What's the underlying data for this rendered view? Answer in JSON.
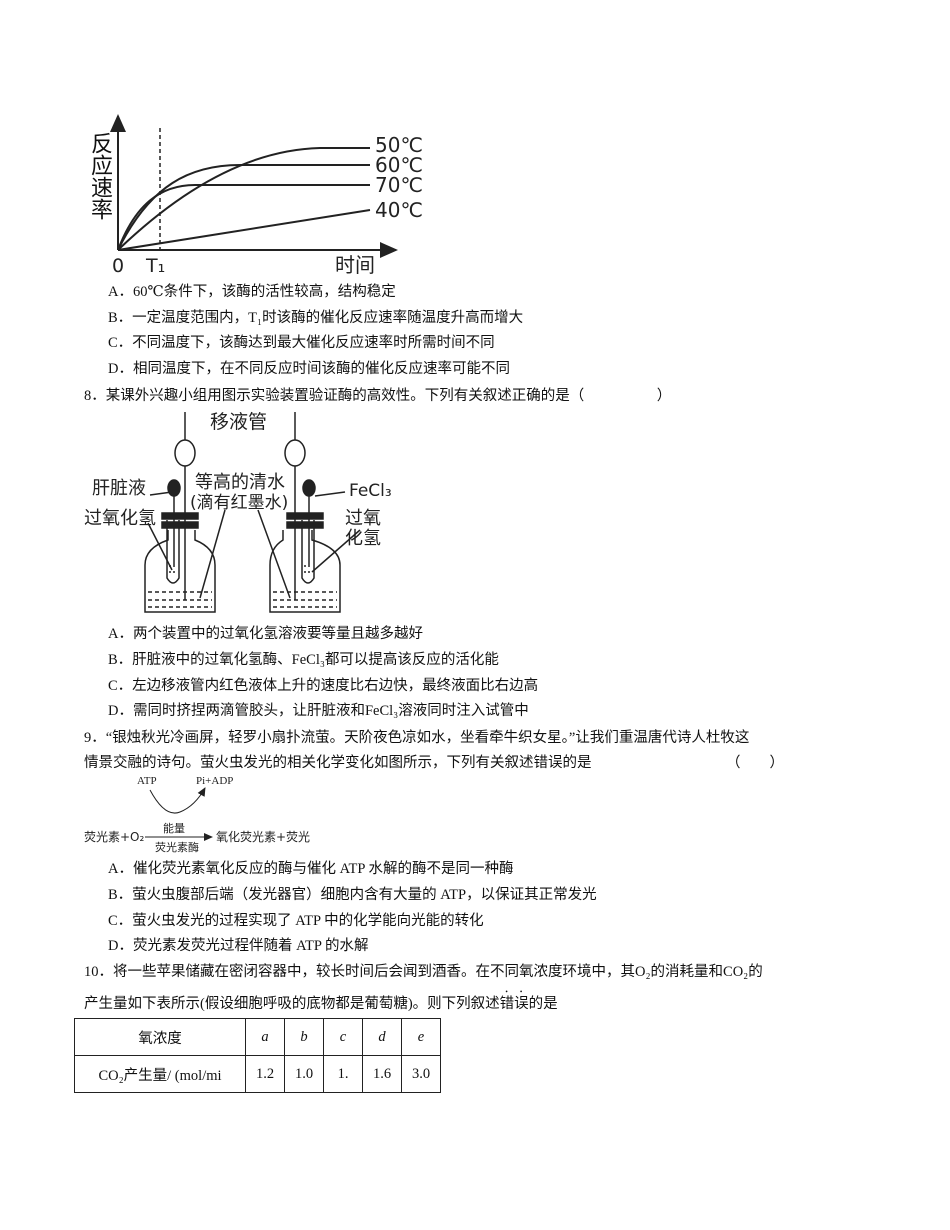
{
  "q7": {
    "figure": {
      "y_label": "反应速率",
      "x_label": "时间",
      "origin": "0",
      "t1": "T₁",
      "curves": [
        "50℃",
        "60℃",
        "70℃",
        "40℃"
      ]
    },
    "options": [
      "A．60℃条件下，该酶的活性较高，结构稳定",
      "B．一定温度范围内，T₁时该酶的催化反应速率随温度升高而增大",
      "C．不同温度下，该酶达到最大催化反应速率时所需时间不同",
      "D．相同温度下，在不同反应时间该酶的催化反应速率可能不同"
    ]
  },
  "q8": {
    "stem": "8．某课外兴趣小组用图示实验装置验证酶的高效性。下列有关叙述正确的是（　　　　　）",
    "figure": {
      "pipette": "移液管",
      "liver": "肝脏液",
      "water": "等高的清水",
      "ink": "(滴有红墨水)",
      "fecl3": "FeCl₃",
      "h2o2_left": "过氧化氢",
      "h2o2_right_1": "过氧",
      "h2o2_right_2": "化氢"
    },
    "options": [
      "A．两个装置中的过氧化氢溶液要等量且越多越好",
      "B．肝脏液中的过氧化氢酶、FeCl₃都可以提高该反应的活化能",
      "C．左边移液管内红色液体上升的速度比右边快，最终液面比右边高",
      "D．需同时挤捏两滴管胶头，让肝脏液和FeCl₃溶液同时注入试管中"
    ]
  },
  "q9": {
    "stem_lines": [
      "9．“银烛秋光冷画屏，轻罗小扇扑流萤。天阶夜色凉如水，坐看牵牛织女星。”让我们重温唐代诗人杜牧这",
      "情景交融的诗句。萤火虫发光的相关化学变化如图所示，下列有关叙述错误的是"
    ],
    "blank": "（　　）",
    "figure": {
      "atp": "ATP",
      "pi_adp": "Pi+ADP",
      "reactants": "荧光素+O₂",
      "energy": "能量",
      "enzyme": "荧光素酶",
      "products": "氧化荧光素+荧光"
    },
    "options": [
      "A．催化荧光素氧化反应的酶与催化 ATP 水解的酶不是同一种酶",
      "B．萤火虫腹部后端（发光器官）细胞内含有大量的 ATP，以保证其正常发光",
      "C．萤火虫发光的过程实现了 ATP 中的化学能向光能的转化",
      "D．荧光素发荧光过程伴随着 ATP 的水解"
    ]
  },
  "q10": {
    "line1": "10．将一些苹果储藏在密闭容器中，较长时间后会闻到酒香。在不同氧浓度环境中，其O₂的消耗量和CO₂的",
    "line2_before": "产生量如下表所示(假设细胞呼吸的底物都是葡萄糖)。则下列叙述",
    "line2_emphasis": "错误",
    "line2_after": "的是",
    "table": {
      "header": [
        "氧浓度",
        "a",
        "b",
        "c",
        "d",
        "e"
      ],
      "rows": [
        [
          "CO₂产生量/ (mol/mi",
          "1.2",
          "1.0",
          "1.",
          "1.6",
          "3.0"
        ]
      ]
    }
  }
}
